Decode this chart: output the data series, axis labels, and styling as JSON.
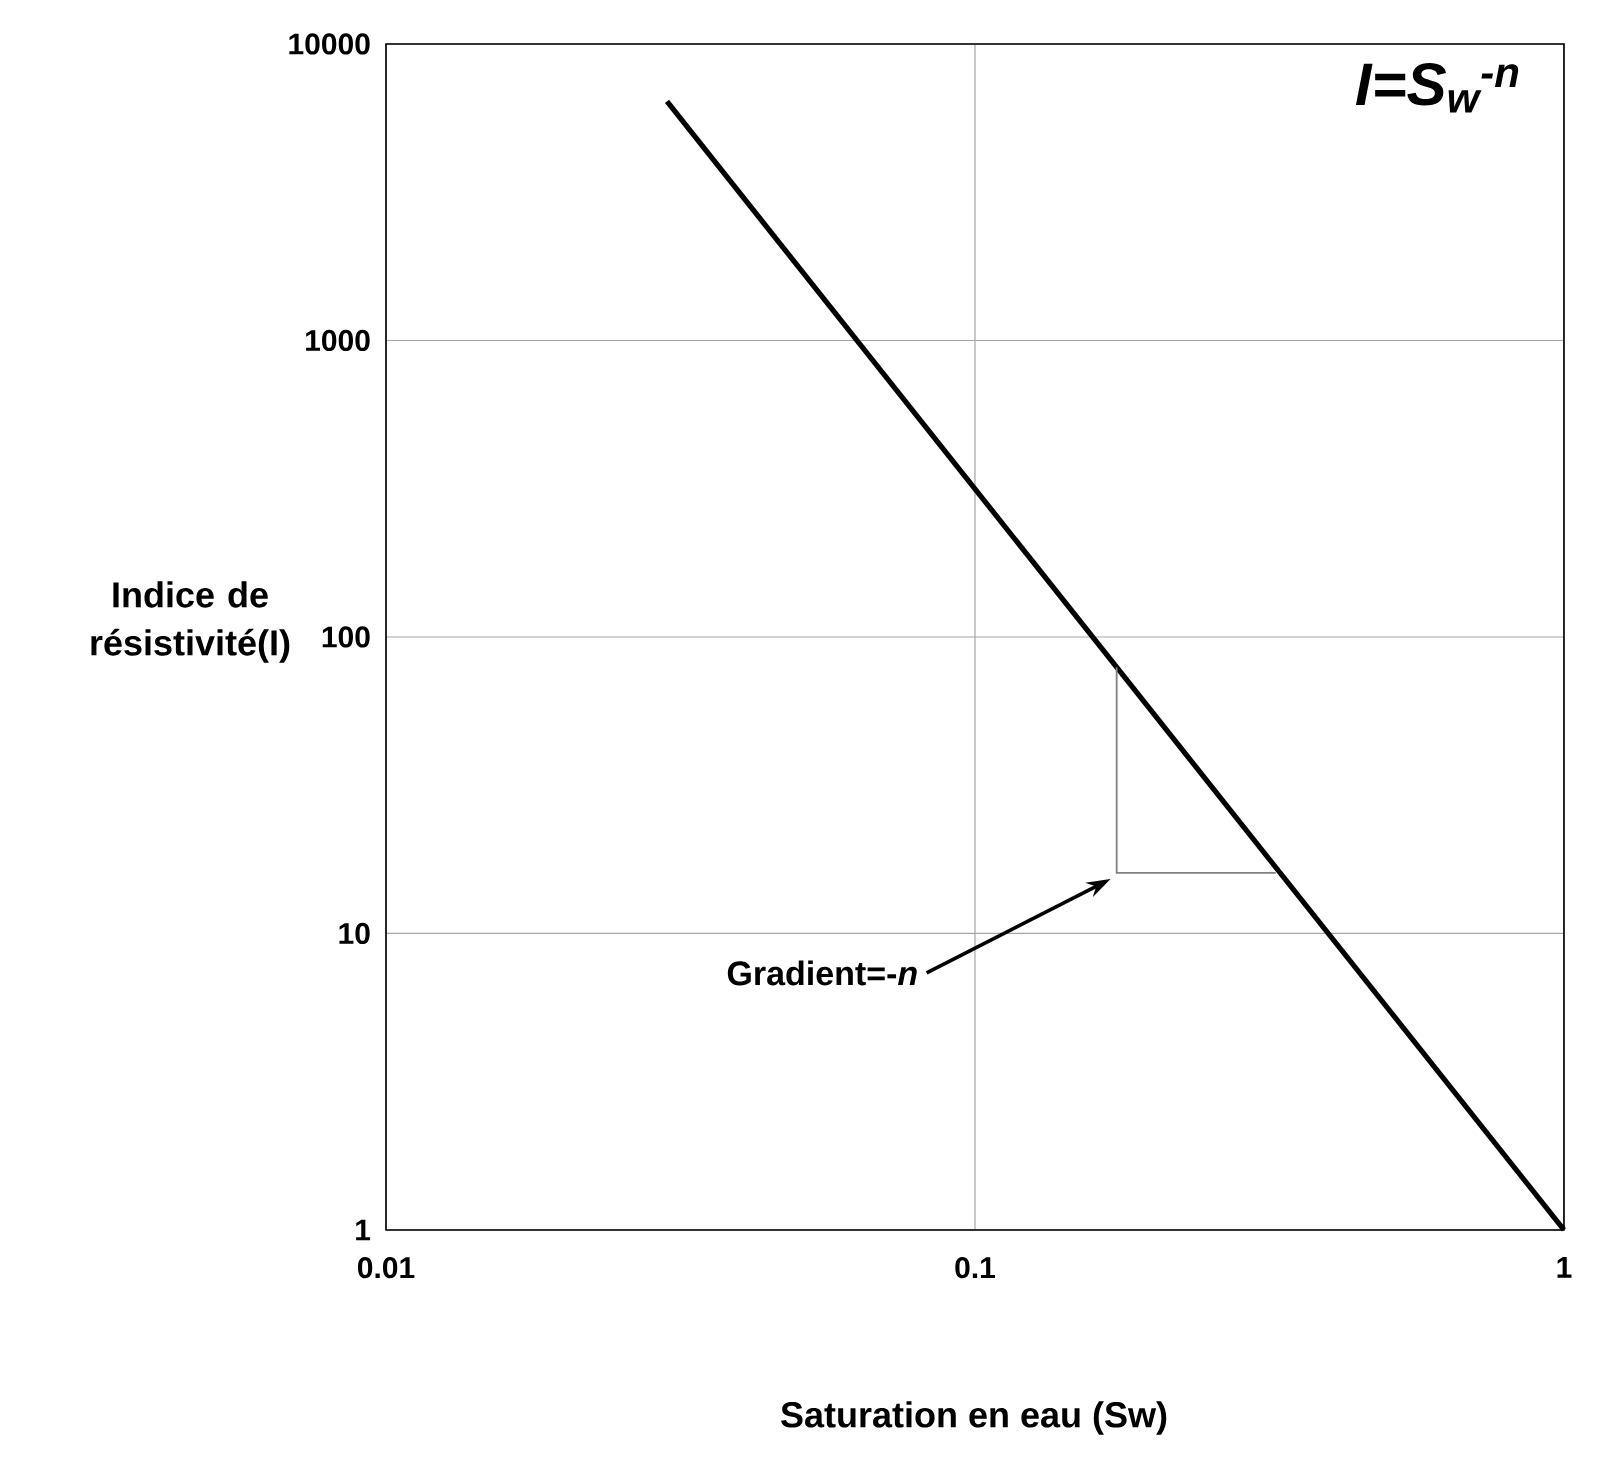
{
  "chart_data": {
    "type": "line",
    "xlabel": "Saturation en eau (Sw)",
    "ylabel": "Indice de résistivité(I)",
    "log": "xy",
    "grid": true,
    "marker": "none",
    "line_style": "solid",
    "xlim": [
      0.01,
      1
    ],
    "ylim": [
      1,
      10000
    ],
    "xticks": [
      0.01,
      0.1,
      1
    ],
    "yticks": [
      1,
      10,
      100,
      1000,
      10000
    ],
    "series": [
      {
        "color": "#000000",
        "x": [
          0.03,
          1
        ],
        "values": [
          6400,
          1
        ]
      },
      {
        "color": "#808080",
        "x": [
          0.174,
          0.174,
          0.324
        ],
        "values": [
          79,
          16,
          16
        ]
      }
    ],
    "annotations": [
      "I=S$_{w}$$^{-n}$",
      "Gradient=-*n*"
    ]
  }
}
